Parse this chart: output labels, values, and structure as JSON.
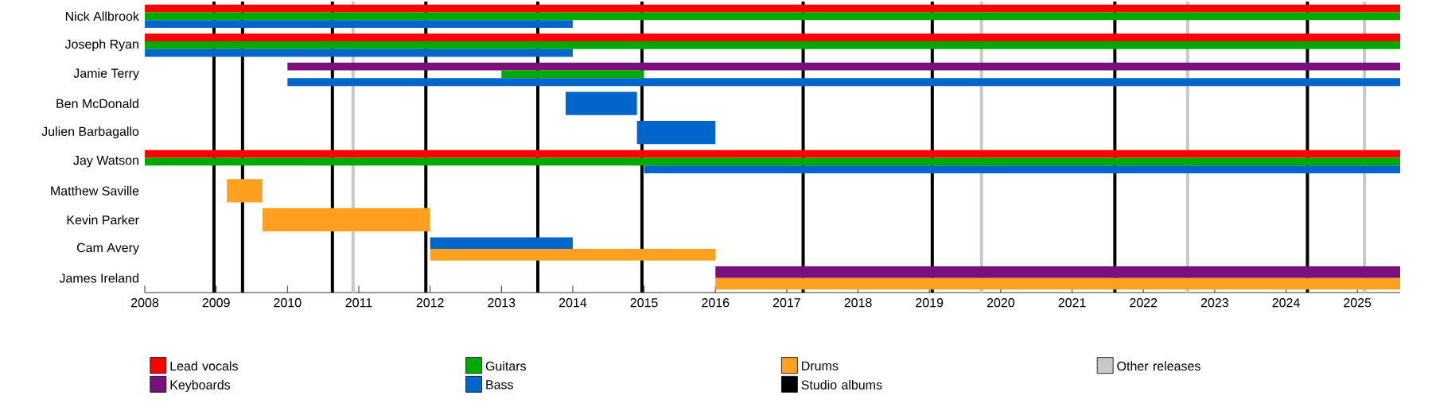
{
  "chart_data": {
    "type": "bar",
    "orientation": "horizontal",
    "legend": "bottom",
    "categories": [
      "Nick Allbrook",
      "Joseph Ryan",
      "Jamie Terry",
      "Ben McDonald",
      "Julien Barbagallo",
      "Jay Watson",
      "Matthew Saville",
      "Kevin Parker",
      "Cam Avery",
      "James Ireland"
    ],
    "xlim": [
      2008,
      2025.6
    ],
    "xticks": [
      2008,
      2009,
      2010,
      2011,
      2012,
      2013,
      2014,
      2015,
      2016,
      2017,
      2018,
      2019,
      2020,
      2021,
      2022,
      2023,
      2024,
      2025
    ],
    "series": [
      {
        "name": "Lead vocals",
        "color": "#ff0000",
        "base": [
          2008,
          2008,
          null,
          null,
          null,
          2008,
          null,
          null,
          null,
          null
        ],
        "values": [
          17.6,
          17.6,
          null,
          null,
          null,
          17.6,
          null,
          null,
          null,
          null
        ]
      },
      {
        "name": "Keyboards",
        "color": "#7b0f7b",
        "base": [
          null,
          null,
          2010,
          null,
          null,
          null,
          null,
          null,
          null,
          2016
        ],
        "values": [
          null,
          null,
          15.6,
          null,
          null,
          null,
          null,
          null,
          null,
          9.6
        ]
      },
      {
        "name": "Guitars",
        "color": "#00aa00",
        "base": [
          2008,
          2008,
          2013,
          null,
          null,
          2008,
          null,
          null,
          null,
          null
        ],
        "values": [
          17.6,
          17.6,
          2,
          null,
          null,
          17.6,
          null,
          null,
          null,
          null
        ]
      },
      {
        "name": "Bass",
        "color": "#0066cc",
        "base": [
          2008,
          2008,
          2010,
          2013.9,
          2014.9,
          2015,
          null,
          null,
          2012,
          null
        ],
        "values": [
          6,
          6,
          15.6,
          1,
          1.1,
          10.6,
          null,
          null,
          2,
          null
        ]
      },
      {
        "name": "Drums",
        "color": "#ffa020",
        "base": [
          null,
          null,
          null,
          null,
          null,
          null,
          2009.15,
          2009.65,
          2012,
          2016
        ],
        "values": [
          null,
          null,
          null,
          null,
          null,
          null,
          0.5,
          2.35,
          4,
          9.6
        ]
      }
    ],
    "ref_lines": [
      {
        "axis": "x",
        "value": 2008.97,
        "color": "#000000",
        "label": "Studio albums"
      },
      {
        "axis": "x",
        "value": 2009.37,
        "color": "#000000"
      },
      {
        "axis": "x",
        "value": 2010.63,
        "color": "#000000"
      },
      {
        "axis": "x",
        "value": 2011.94,
        "color": "#000000"
      },
      {
        "axis": "x",
        "value": 2013.51,
        "color": "#000000"
      },
      {
        "axis": "x",
        "value": 2014.97,
        "color": "#000000"
      },
      {
        "axis": "x",
        "value": 2017.23,
        "color": "#000000"
      },
      {
        "axis": "x",
        "value": 2019.04,
        "color": "#000000"
      },
      {
        "axis": "x",
        "value": 2021.6,
        "color": "#000000"
      },
      {
        "axis": "x",
        "value": 2024.3,
        "color": "#000000"
      },
      {
        "axis": "x",
        "value": 2010.92,
        "color": "#c8c8c8",
        "label": "Other releases"
      },
      {
        "axis": "x",
        "value": 2019.73,
        "color": "#c8c8c8"
      },
      {
        "axis": "x",
        "value": 2022.62,
        "color": "#c8c8c8"
      },
      {
        "axis": "x",
        "value": 2025.1,
        "color": "#c8c8c8"
      }
    ]
  }
}
